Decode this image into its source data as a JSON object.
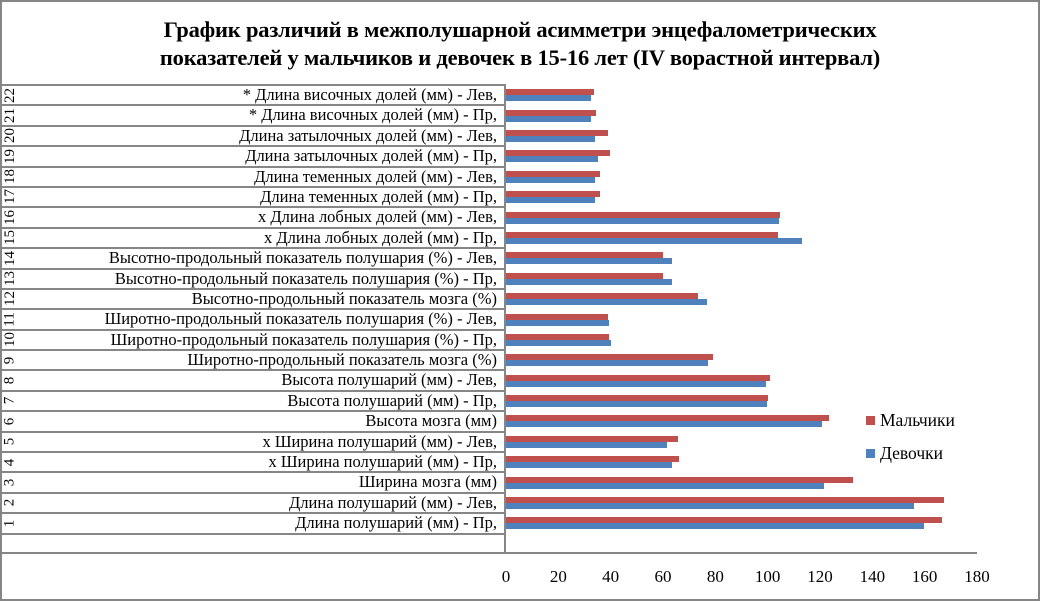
{
  "chart_data": {
    "type": "bar",
    "orientation": "horizontal",
    "title": "График различий в межполушарной асимметри энцефалометрических показателей у мальчиков и девочек в 15-16 лет (IV ворастной интервал)",
    "title_lines": [
      "График различий в межполушарной асимметри энцефалометрических",
      "показателей у мальчиков и девочек в 15-16 лет (IV ворастной интервал)"
    ],
    "xlabel": "",
    "ylabel": "",
    "xlim": [
      0,
      180
    ],
    "x_ticks": [
      "0",
      "20",
      "40",
      "60",
      "80",
      "100",
      "120",
      "140",
      "160",
      "180"
    ],
    "grid": false,
    "legend_position": "right",
    "categories": [
      {
        "num": "1",
        "label": "Длина полушарий (мм) - Пр,"
      },
      {
        "num": "2",
        "label": "Длина полушарий (мм) - Лев,"
      },
      {
        "num": "3",
        "label": "Ширина мозга (мм)"
      },
      {
        "num": "4",
        "label": "х Ширина полушарий (мм) - Пр,"
      },
      {
        "num": "5",
        "label": "х Ширина полушарий (мм) - Лев,"
      },
      {
        "num": "6",
        "label": "Высота мозга (мм)"
      },
      {
        "num": "7",
        "label": "Высота полушарий (мм) - Пр,"
      },
      {
        "num": "8",
        "label": "Высота полушарий (мм) - Лев,"
      },
      {
        "num": "9",
        "label": "Широтно-продольный показатель мозга (%)"
      },
      {
        "num": "10",
        "label": "Широтно-продольный показатель полушария (%) - Пр,"
      },
      {
        "num": "11",
        "label": "Широтно-продольный показатель полушария (%) - Лев,"
      },
      {
        "num": "12",
        "label": "Высотно-продольный показатель мозга (%)"
      },
      {
        "num": "13",
        "label": "Высотно-продольный показатель полушария (%) - Пр,"
      },
      {
        "num": "14",
        "label": "Высотно-продольный показатель полушария (%) - Лев,"
      },
      {
        "num": "15",
        "label": "х Длина лобных долей (мм) - Пр,"
      },
      {
        "num": "16",
        "label": "х Длина лобных долей (мм) - Лев,"
      },
      {
        "num": "17",
        "label": "Длина теменных долей (мм) - Пр,"
      },
      {
        "num": "18",
        "label": "Длина теменных долей (мм) - Лев,"
      },
      {
        "num": "19",
        "label": "Длина затылочных долей (мм) - Пр,"
      },
      {
        "num": "20",
        "label": "Длина затылочных долей (мм) - Лев,"
      },
      {
        "num": "21",
        "label": "* Длина височных долей (мм) - Пр,"
      },
      {
        "num": "22",
        "label": "* Длина височных долей (мм) - Лев,"
      }
    ],
    "series": [
      {
        "name": "Мальчики",
        "color": "#C0504D",
        "values": [
          166.6,
          167.4,
          132.6,
          66.1,
          65.7,
          123.4,
          100.1,
          100.9,
          79.1,
          39.4,
          39.0,
          73.4,
          60.0,
          60.0,
          103.9,
          104.7,
          35.9,
          35.9,
          39.7,
          39.0,
          34.4,
          33.6
        ]
      },
      {
        "name": "Девочки",
        "color": "#4F81BD",
        "values": [
          159.7,
          155.9,
          121.5,
          63.4,
          61.5,
          120.7,
          99.7,
          99.4,
          77.2,
          40.1,
          39.4,
          76.8,
          63.4,
          63.4,
          113.1,
          104.3,
          34.0,
          34.0,
          35.2,
          34.0,
          32.5,
          32.5
        ]
      }
    ]
  },
  "legend": {
    "items": [
      {
        "label": "Мальчики",
        "color": "#C0504D"
      },
      {
        "label": "Девочки",
        "color": "#4F81BD"
      }
    ]
  }
}
